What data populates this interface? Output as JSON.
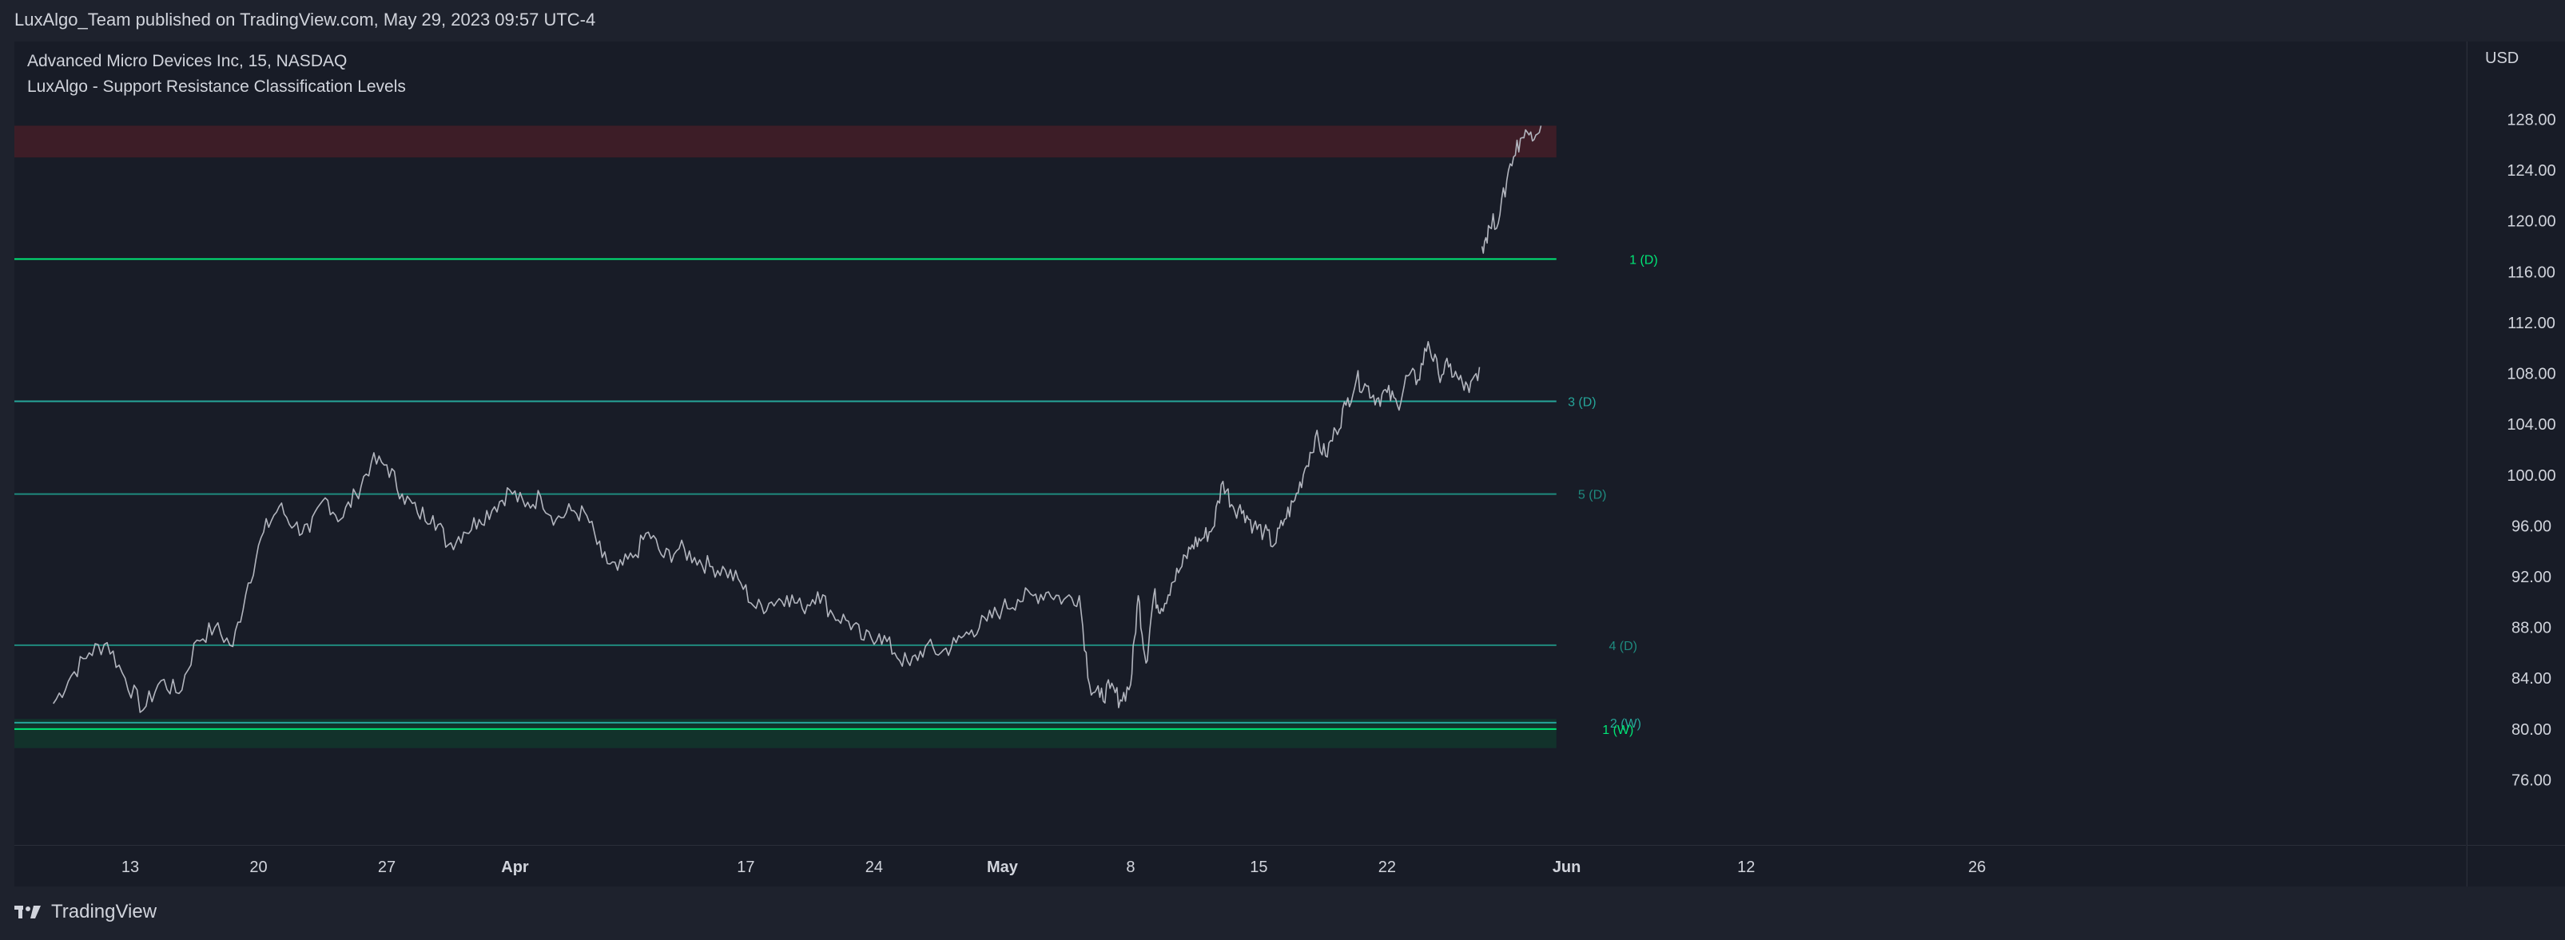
{
  "header": {
    "published": "LuxAlgo_Team published on TradingView.com, May 29, 2023 09:57 UTC-4"
  },
  "legend": {
    "symbol": "Advanced Micro Devices Inc, 15, NASDAQ",
    "indicator": "LuxAlgo - Support Resistance Classification Levels"
  },
  "price_scale": {
    "currency": "USD"
  },
  "footer": {
    "brand": "TradingView"
  },
  "colors": {
    "background": "#181c27",
    "price_line": "#b2b5be",
    "level_green": "#26a69a",
    "level_bright": "#00e676",
    "zone_red": "#4a1f2a",
    "zone_green": "#12322b"
  },
  "chart_data": {
    "type": "line",
    "ylim": [
      71,
      134
    ],
    "y_ticks": [
      "76.00",
      "80.00",
      "84.00",
      "88.00",
      "92.00",
      "96.00",
      "100.00",
      "104.00",
      "108.00",
      "112.00",
      "116.00",
      "120.00",
      "124.00",
      "128.00"
    ],
    "x_ticks": [
      {
        "label": "13",
        "idx": 3,
        "bold": false
      },
      {
        "label": "20",
        "idx": 8,
        "bold": false
      },
      {
        "label": "27",
        "idx": 13,
        "bold": false
      },
      {
        "label": "Apr",
        "idx": 18,
        "bold": true
      },
      {
        "label": "17",
        "idx": 27,
        "bold": false
      },
      {
        "label": "24",
        "idx": 32,
        "bold": false
      },
      {
        "label": "May",
        "idx": 37,
        "bold": true
      },
      {
        "label": "8",
        "idx": 42,
        "bold": false
      },
      {
        "label": "15",
        "idx": 47,
        "bold": false
      },
      {
        "label": "22",
        "idx": 52,
        "bold": false
      },
      {
        "label": "Jun",
        "idx": 59,
        "bold": true
      },
      {
        "label": "12",
        "idx": 66,
        "bold": false
      },
      {
        "label": "26",
        "idx": 75,
        "bold": false
      }
    ],
    "session_span": [
      0,
      93
    ],
    "series": [
      {
        "values": [
          [
            0,
            82
          ],
          [
            0.7,
            84.2
          ],
          [
            1.4,
            86
          ],
          [
            2.1,
            86.8
          ],
          [
            2.8,
            84
          ],
          [
            3.5,
            81.5
          ],
          [
            4.2,
            83.8
          ],
          [
            4.9,
            82.8
          ],
          [
            5.6,
            87
          ],
          [
            6.3,
            88
          ],
          [
            7.0,
            86.5
          ],
          [
            7.6,
            91.5
          ],
          [
            8.2,
            95.5
          ],
          [
            8.8,
            97.5
          ],
          [
            9.4,
            96
          ],
          [
            10.0,
            95.5
          ],
          [
            10.6,
            98.2
          ],
          [
            11.2,
            96.5
          ],
          [
            11.8,
            98.5
          ],
          [
            12.4,
            101
          ],
          [
            13.0,
            100.8
          ],
          [
            13.6,
            98.5
          ],
          [
            14.2,
            97
          ],
          [
            14.8,
            96.8
          ],
          [
            15.4,
            94.5
          ],
          [
            16.0,
            95.5
          ],
          [
            16.6,
            96.5
          ],
          [
            17.2,
            97.5
          ],
          [
            17.8,
            98.8
          ],
          [
            18.4,
            97.5
          ],
          [
            19.0,
            98.3
          ],
          [
            19.6,
            96.5
          ],
          [
            20.2,
            97.2
          ],
          [
            20.8,
            96.8
          ],
          [
            21.4,
            93.5
          ],
          [
            22.0,
            92.5
          ],
          [
            22.6,
            93.5
          ],
          [
            23.2,
            95.5
          ],
          [
            23.8,
            93.5
          ],
          [
            24.4,
            94.2
          ],
          [
            25.0,
            93.5
          ],
          [
            25.6,
            92.8
          ],
          [
            26.2,
            92.5
          ],
          [
            26.8,
            91.5
          ],
          [
            27.4,
            89.5
          ],
          [
            28.0,
            90
          ],
          [
            28.6,
            90.5
          ],
          [
            29.2,
            89.5
          ],
          [
            29.8,
            90.8
          ],
          [
            30.4,
            89
          ],
          [
            31.0,
            88.5
          ],
          [
            31.6,
            87
          ],
          [
            32.2,
            87.5
          ],
          [
            32.8,
            86
          ],
          [
            33.4,
            85
          ],
          [
            34.0,
            86.5
          ],
          [
            34.6,
            86
          ],
          [
            35.2,
            86.8
          ],
          [
            35.8,
            87.8
          ],
          [
            36.4,
            88.5
          ],
          [
            37.0,
            89.5
          ],
          [
            37.6,
            90.2
          ],
          [
            38.2,
            90.5
          ],
          [
            38.8,
            90.8
          ],
          [
            39.4,
            90.2
          ],
          [
            40.0,
            90.5
          ],
          [
            40.4,
            83.5
          ],
          [
            40.8,
            82.5
          ],
          [
            41.2,
            83.2
          ],
          [
            41.6,
            82.3
          ],
          [
            42.0,
            83.5
          ],
          [
            42.3,
            90.5
          ],
          [
            42.6,
            85.2
          ],
          [
            42.9,
            90.5
          ],
          [
            43.2,
            89.5
          ],
          [
            43.6,
            91.5
          ],
          [
            44.0,
            92.8
          ],
          [
            44.4,
            94.5
          ],
          [
            44.8,
            95
          ],
          [
            45.2,
            95.8
          ],
          [
            45.6,
            99.5
          ],
          [
            46.0,
            97.5
          ],
          [
            46.4,
            97.2
          ],
          [
            46.8,
            96
          ],
          [
            47.2,
            95.5
          ],
          [
            47.6,
            94.5
          ],
          [
            48.0,
            96.5
          ],
          [
            48.4,
            98
          ],
          [
            48.8,
            100.5
          ],
          [
            49.2,
            103
          ],
          [
            49.6,
            101.5
          ],
          [
            50.0,
            103.5
          ],
          [
            50.4,
            105.5
          ],
          [
            50.8,
            107.5
          ],
          [
            51.2,
            107
          ],
          [
            51.6,
            106
          ],
          [
            52.0,
            106.5
          ],
          [
            52.4,
            105.5
          ],
          [
            52.8,
            107.8
          ],
          [
            53.2,
            107.5
          ],
          [
            53.6,
            110.5
          ],
          [
            54.0,
            108
          ],
          [
            54.4,
            108.5
          ],
          [
            54.8,
            107.5
          ],
          [
            55.2,
            106.5
          ],
          [
            55.6,
            108.5
          ]
        ]
      },
      {
        "values": [
          [
            55.7,
            118
          ],
          [
            56.0,
            119.5
          ],
          [
            56.4,
            120.5
          ],
          [
            56.8,
            124.5
          ],
          [
            57.2,
            126.5
          ],
          [
            57.6,
            127
          ],
          [
            58.0,
            127.5
          ]
        ]
      }
    ],
    "levels": [
      {
        "label": "1 (D)",
        "price": 117.0,
        "color": "#00e676",
        "label_x": 62.0,
        "label_color": "#00e676"
      },
      {
        "label": "3 (D)",
        "price": 105.8,
        "color": "#26a69a",
        "label_x": 59.6,
        "label_color": "#26a69a"
      },
      {
        "label": "5 (D)",
        "price": 98.5,
        "color": "#1f8a7e",
        "label_x": 60.0,
        "label_color": "#1f8a7e"
      },
      {
        "label": "4 (D)",
        "price": 86.6,
        "color": "#1f8a7e",
        "label_x": 61.2,
        "label_color": "#1f8a7e"
      },
      {
        "label": "2 (W)",
        "price": 80.5,
        "color": "#26a69a",
        "label_x": 61.3,
        "label_color": "#26a69a"
      },
      {
        "label": "1 (W)",
        "price": 80.0,
        "color": "#00e676",
        "label_x": 61.0,
        "label_color": "#00e676"
      }
    ],
    "zones": [
      {
        "from": 125.0,
        "to": 127.5,
        "color": "#3d1d27"
      },
      {
        "from": 78.5,
        "to": 80.8,
        "color": "#12322b"
      }
    ]
  }
}
